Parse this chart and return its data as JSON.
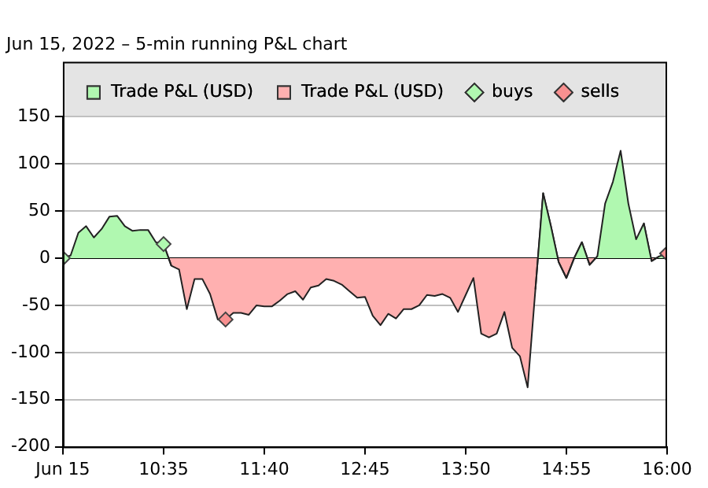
{
  "chart_data": {
    "type": "area",
    "subtitle": "Jun 15, 2022 – 5-min running P&L chart",
    "x": [
      9.5,
      9.5833,
      9.6667,
      9.75,
      9.8333,
      9.9167,
      10,
      10.0833,
      10.1667,
      10.25,
      10.3333,
      10.4167,
      10.5,
      10.5833,
      10.6667,
      10.75,
      10.8333,
      10.9167,
      11,
      11.0833,
      11.1667,
      11.25,
      11.3333,
      11.4167,
      11.5,
      11.5833,
      11.6667,
      11.75,
      11.8333,
      11.9167,
      12,
      12.0833,
      12.1667,
      12.25,
      12.3333,
      12.4167,
      12.5,
      12.5833,
      12.6667,
      12.75,
      12.8333,
      12.9167,
      13,
      13.0833,
      13.1667,
      13.25,
      13.3333,
      13.4167,
      13.5,
      13.5833,
      13.6667,
      13.75,
      13.8333,
      13.9167,
      14,
      14.0833,
      14.1667,
      14.25,
      14.3333,
      14.4167,
      14.5,
      14.5833,
      14.6667,
      14.75,
      14.8333,
      14.9167,
      15,
      15.0833,
      15.1667,
      15.25,
      15.3333,
      15.4167,
      15.5,
      15.5833,
      15.6667,
      15.75,
      15.8333,
      15.9167,
      16
    ],
    "series": [
      {
        "name": "Trade P&L (USD)",
        "color": "#b0f8b0",
        "values": [
          0,
          3,
          27,
          34,
          22,
          31,
          44,
          45,
          34,
          29,
          30,
          30,
          17,
          15,
          -8,
          null,
          null,
          null,
          null,
          null,
          null,
          null,
          null,
          null,
          null,
          null,
          null,
          null,
          null,
          null,
          null,
          null,
          null,
          null,
          null,
          null,
          null,
          null,
          null,
          null,
          null,
          null,
          null,
          null,
          null,
          null,
          null,
          null,
          null,
          null,
          null,
          null,
          null,
          null,
          null,
          null,
          null,
          null,
          null,
          null,
          null,
          -33,
          69,
          34,
          -4,
          -21,
          0,
          17,
          -7,
          2,
          58,
          81,
          114,
          58,
          20,
          37,
          -3,
          2,
          5
        ]
      },
      {
        "name": "Trade P&L (USD)",
        "color": "#ffb0b0",
        "values": [
          null,
          null,
          null,
          null,
          null,
          null,
          null,
          null,
          null,
          null,
          null,
          null,
          null,
          15,
          -8,
          -12,
          -54,
          -22,
          -22,
          -38,
          -65,
          -65,
          -58,
          -58,
          -60,
          -50,
          -51,
          -51,
          -45,
          -38,
          -35,
          -44,
          -31,
          -29,
          -22,
          -24,
          -28,
          -35,
          -42,
          -41,
          -61,
          -71,
          -59,
          -64,
          -54,
          -54,
          -50,
          -39,
          -40,
          -38,
          -42,
          -57,
          -39,
          -21,
          -80,
          -84,
          -80,
          -57,
          -95,
          -104,
          -137,
          -33,
          69,
          34,
          -4,
          -21,
          0,
          17,
          -7,
          2,
          null,
          null,
          null,
          null,
          null,
          37,
          -3,
          2,
          null
        ]
      },
      {
        "name": "buys",
        "type": "scatter",
        "marker": "diamond",
        "color": "#b0f8b0",
        "x": [
          9.5,
          10.5833
        ],
        "values": [
          0,
          15
        ]
      },
      {
        "name": "sells",
        "type": "scatter",
        "marker": "diamond",
        "color": "#f89090",
        "x": [
          11.25,
          16
        ],
        "values": [
          -65,
          5
        ]
      }
    ],
    "xlim": [
      9.5,
      16
    ],
    "xticks": [
      {
        "value": 9.5,
        "label": "Jun 15"
      },
      {
        "value": 10.5833,
        "label": "10:35"
      },
      {
        "value": 11.6667,
        "label": "11:40"
      },
      {
        "value": 12.75,
        "label": "12:45"
      },
      {
        "value": 13.8333,
        "label": "13:50"
      },
      {
        "value": 14.9167,
        "label": "14:55"
      },
      {
        "value": 16,
        "label": "16:00"
      }
    ],
    "ylim": [
      -200,
      150
    ],
    "yticks": [
      -200,
      -150,
      -100,
      -50,
      0,
      50,
      100,
      150
    ],
    "grid": "y",
    "legend": "top"
  }
}
